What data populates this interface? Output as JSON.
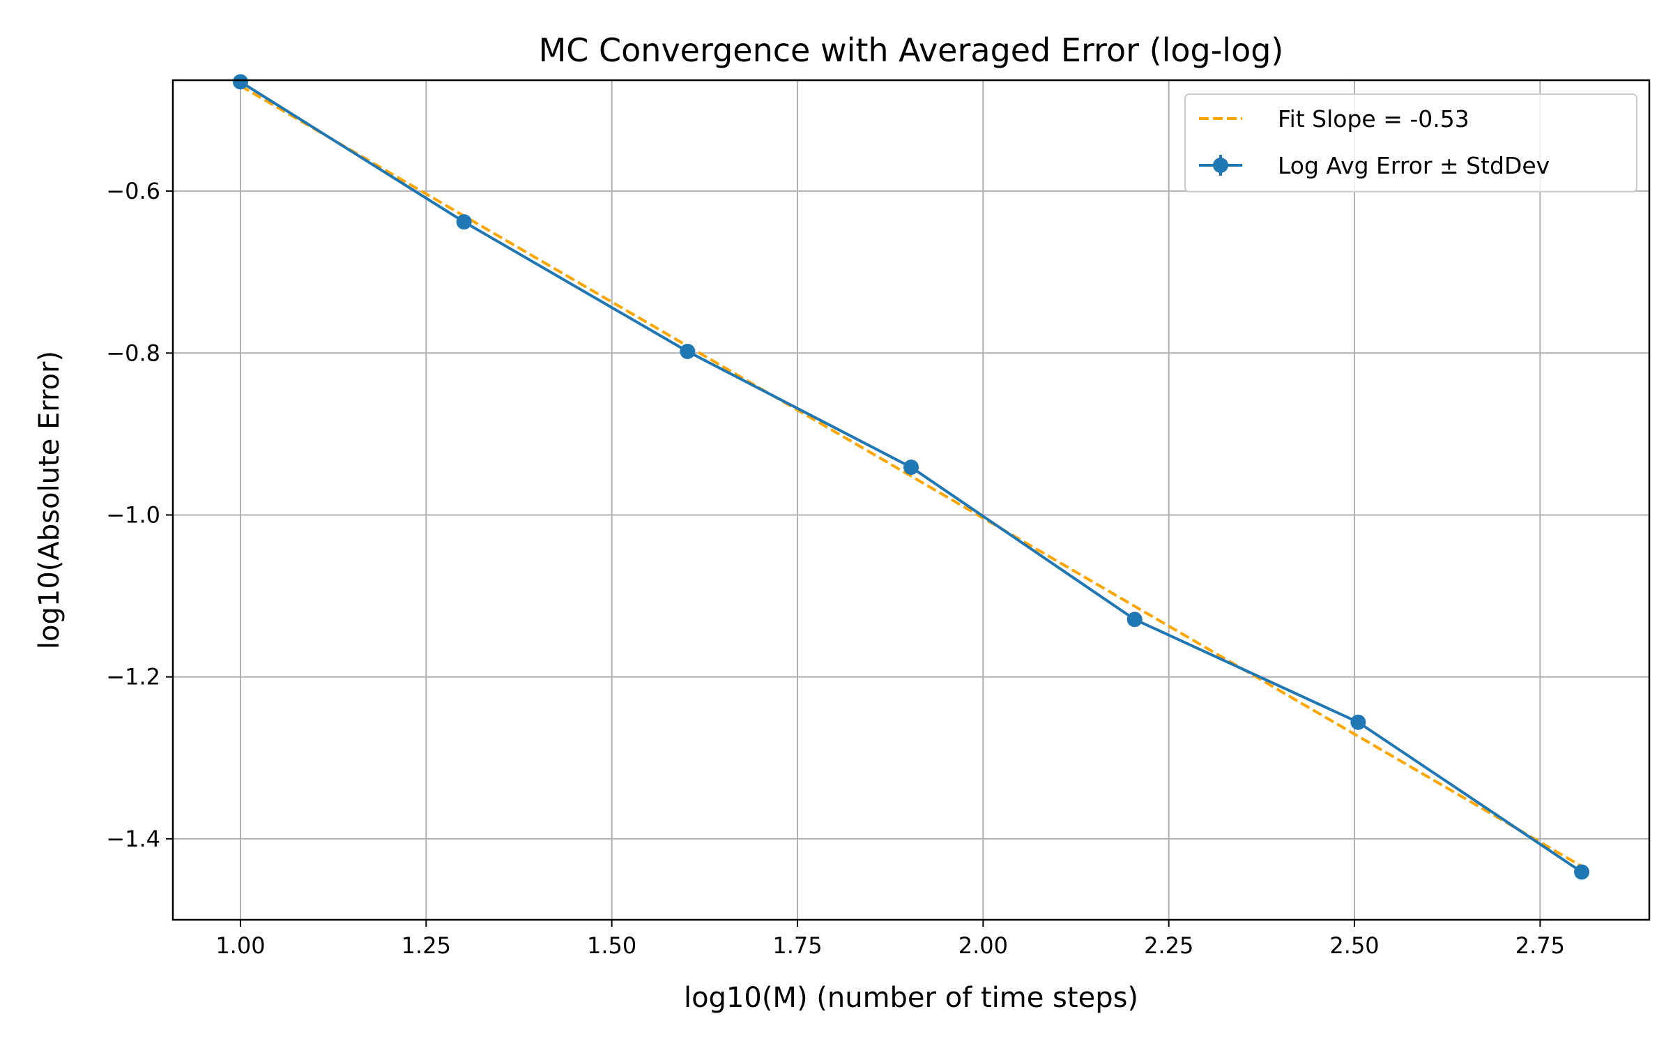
{
  "chart_data": {
    "type": "line",
    "title": "MC Convergence with Averaged Error (log-log)",
    "xlabel": "log10(M)  (number of time steps)",
    "ylabel": "log10(Absolute Error)",
    "xlim": [
      0.909,
      2.897
    ],
    "ylim": [
      -1.5,
      -0.463
    ],
    "x_ticks": [
      1.0,
      1.25,
      1.5,
      1.75,
      2.0,
      2.25,
      2.5,
      2.75
    ],
    "x_tick_labels": [
      "1.00",
      "1.25",
      "1.50",
      "1.75",
      "2.00",
      "2.25",
      "2.50",
      "2.75"
    ],
    "y_ticks": [
      -0.6,
      -0.8,
      -1.0,
      -1.2,
      -1.4
    ],
    "y_tick_labels": [
      "−0.6",
      "−0.8",
      "−1.0",
      "−1.2",
      "−1.4"
    ],
    "grid": true,
    "legend_position": "top-right",
    "series": [
      {
        "name": "Log Avg Error ± StdDev",
        "style": "solid-line-with-markers-and-errorbars",
        "color": "#1f77b4",
        "x": [
          1.0,
          1.301,
          1.602,
          1.903,
          2.204,
          2.505,
          2.806
        ],
        "y": [
          -0.465,
          -0.638,
          -0.798,
          -0.941,
          -1.129,
          -1.256,
          -1.441
        ]
      },
      {
        "name": "Fit Slope = -0.53",
        "style": "dashed-line",
        "color": "#ffa500",
        "x": [
          1.0,
          2.806
        ],
        "y": [
          -0.47,
          -1.434
        ]
      }
    ]
  }
}
